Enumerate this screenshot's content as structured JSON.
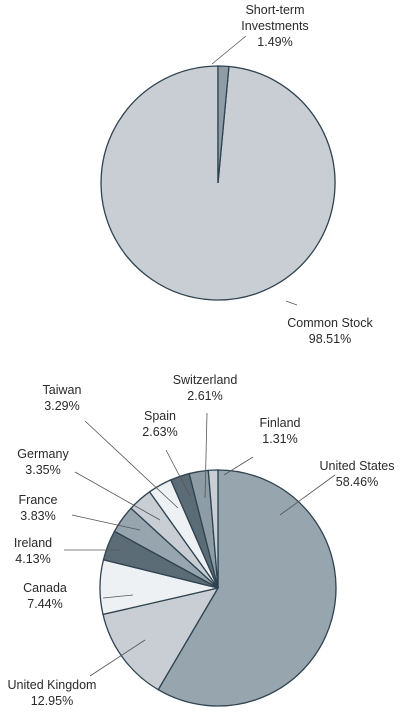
{
  "chart_data": [
    {
      "type": "pie",
      "title": "",
      "slices": [
        {
          "label_lines": [
            "Common Stock",
            "98.51%"
          ],
          "value": 98.51,
          "color": "#c8ced4"
        },
        {
          "label_lines": [
            "Short-term",
            "Investments",
            "1.49%"
          ],
          "value": 1.49,
          "color": "#8e9ca6"
        }
      ]
    },
    {
      "type": "pie",
      "title": "",
      "slices": [
        {
          "label_lines": [
            "United States",
            "58.46%"
          ],
          "value": 58.46,
          "color": "#97a5af"
        },
        {
          "label_lines": [
            "United Kingdom",
            "12.95%"
          ],
          "value": 12.95,
          "color": "#c8ced4"
        },
        {
          "label_lines": [
            "Canada",
            "7.44%"
          ],
          "value": 7.44,
          "color": "#eef1f3"
        },
        {
          "label_lines": [
            "Ireland",
            "4.13%"
          ],
          "value": 4.13,
          "color": "#5c6c77"
        },
        {
          "label_lines": [
            "France",
            "3.83%"
          ],
          "value": 3.83,
          "color": "#97a5af"
        },
        {
          "label_lines": [
            "Germany",
            "3.35%"
          ],
          "value": 3.35,
          "color": "#c8ced4"
        },
        {
          "label_lines": [
            "Taiwan",
            "3.29%"
          ],
          "value": 3.29,
          "color": "#eef1f3"
        },
        {
          "label_lines": [
            "Spain",
            "2.63%"
          ],
          "value": 2.63,
          "color": "#5c6c77"
        },
        {
          "label_lines": [
            "Switzerland",
            "2.61%"
          ],
          "value": 2.61,
          "color": "#8e9ca6"
        },
        {
          "label_lines": [
            "Finland",
            "1.31%"
          ],
          "value": 1.31,
          "color": "#c8ced4"
        }
      ]
    }
  ]
}
